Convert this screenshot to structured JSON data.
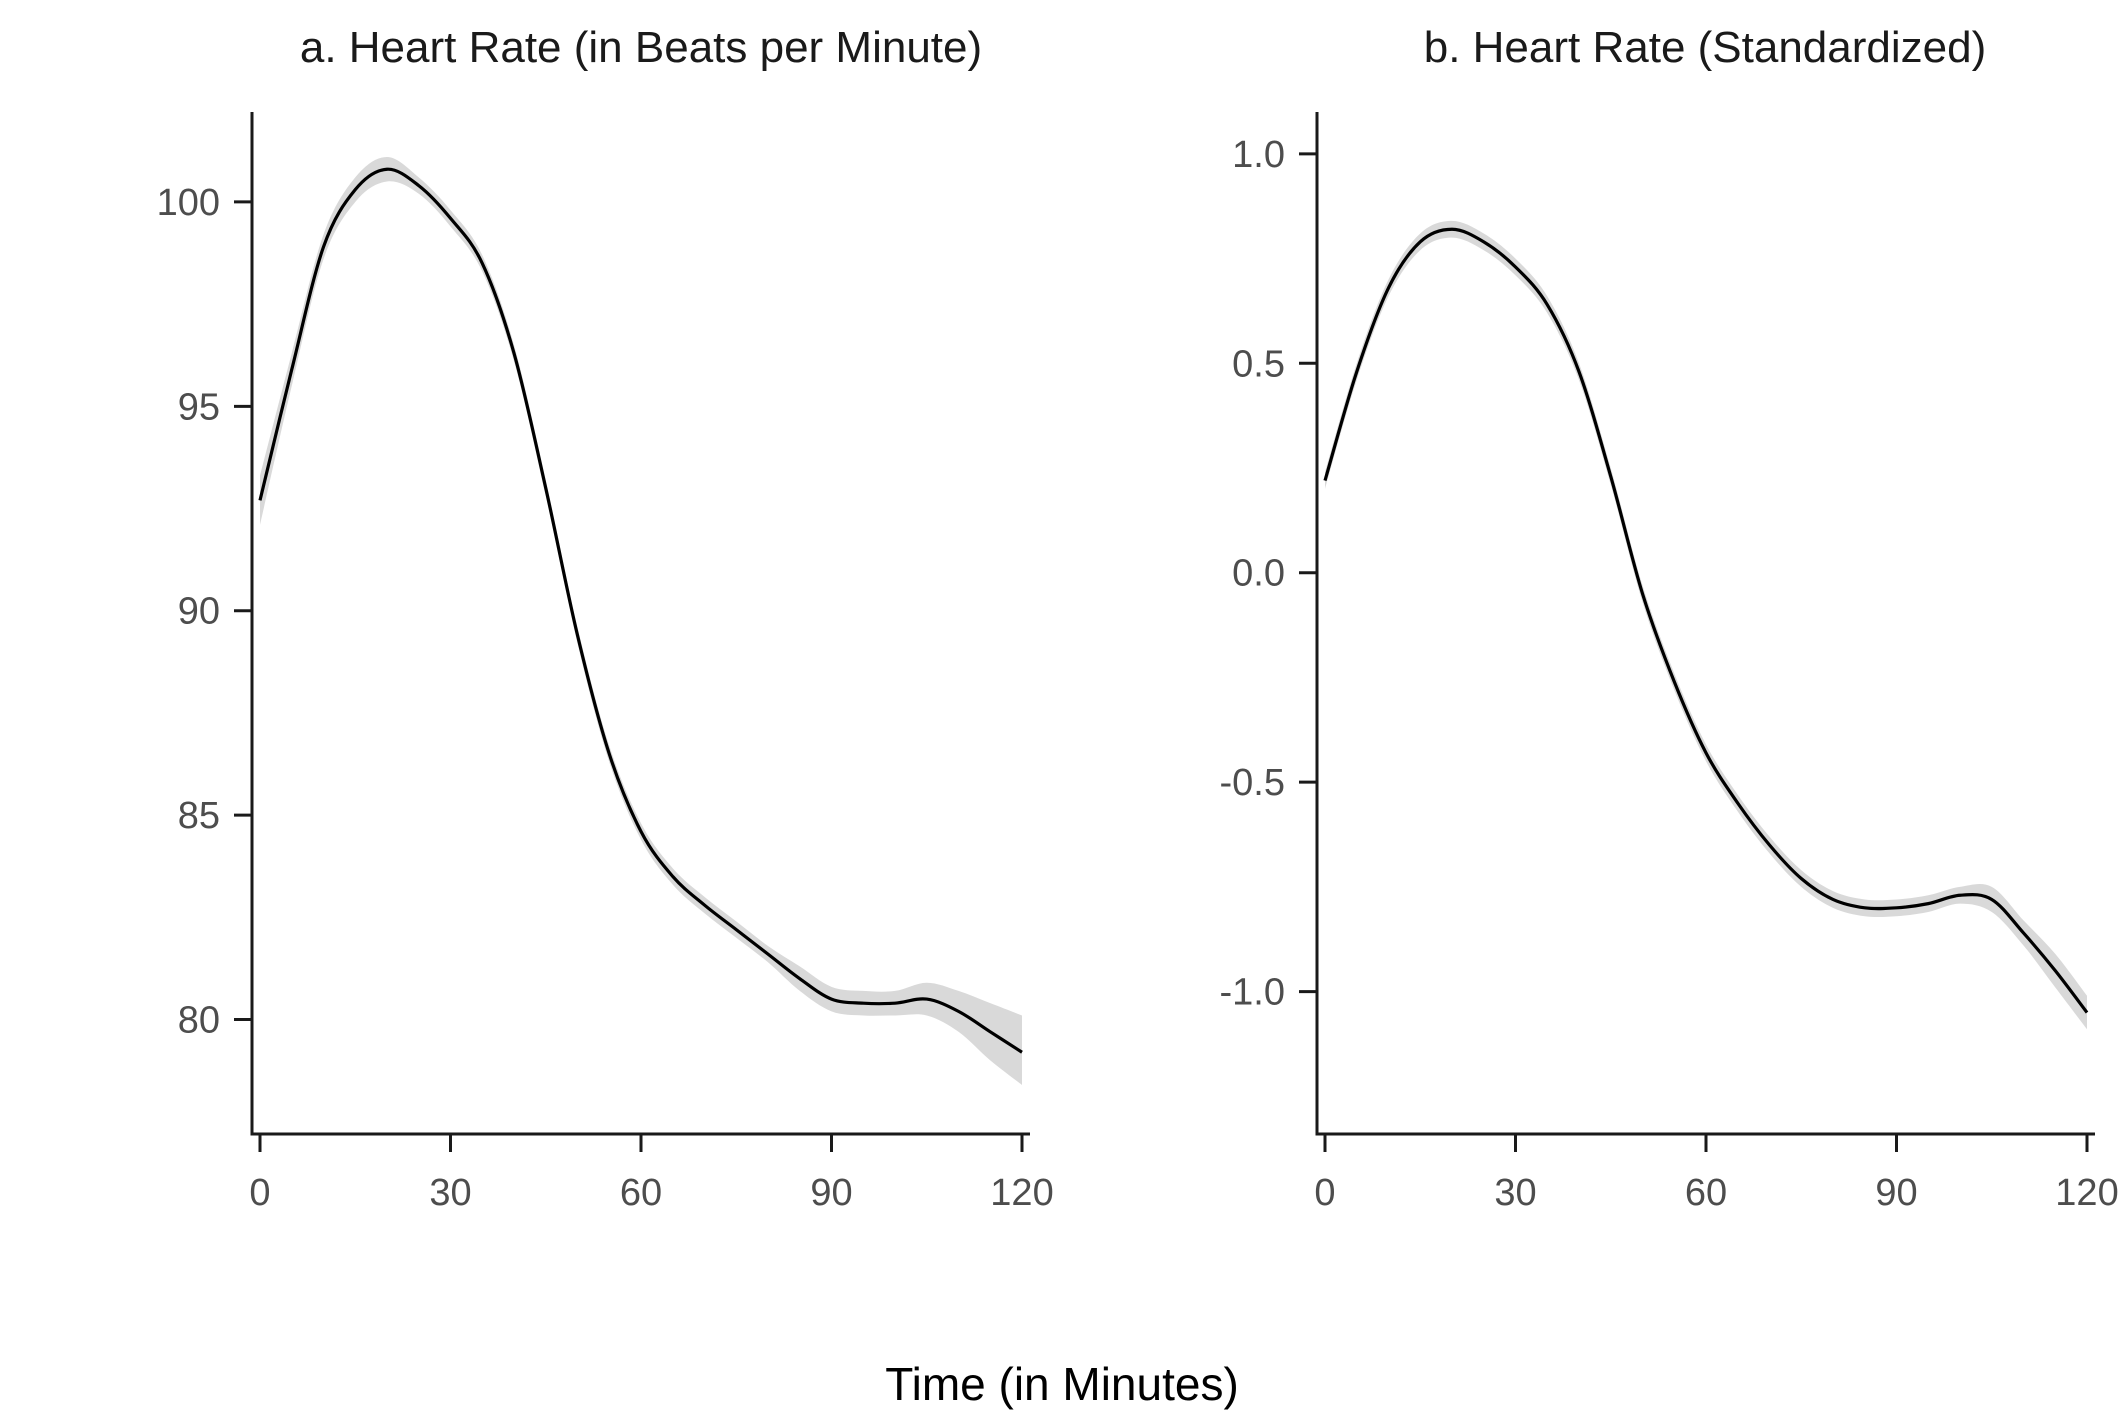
{
  "x_title": "Time (in Minutes)",
  "colors": {
    "line": "#000000",
    "band": "#d9d9d9",
    "axis": "#1a1a1a",
    "tick_text": "#4d4d4d"
  },
  "chart_data": [
    {
      "type": "line",
      "title": "a. Heart Rate (in Beats per Minute)",
      "xlabel": "Time (in Minutes)",
      "ylabel": "",
      "xlim": [
        0,
        120
      ],
      "ylim": [
        77.2,
        102.2
      ],
      "x_ticks": [
        0,
        30,
        60,
        90,
        120
      ],
      "y_ticks": [
        80,
        85,
        90,
        95,
        100
      ],
      "y_tick_labels": [
        "80",
        "85",
        "90",
        "95",
        "100"
      ],
      "grid": false,
      "confidence_band": true,
      "x": [
        0,
        5,
        10,
        15,
        20,
        25,
        30,
        35,
        40,
        45,
        50,
        55,
        60,
        65,
        70,
        75,
        80,
        85,
        90,
        95,
        100,
        105,
        110,
        115,
        120
      ],
      "y": [
        92.7,
        95.9,
        98.9,
        100.3,
        100.8,
        100.4,
        99.6,
        98.5,
        96.3,
        93.0,
        89.4,
        86.5,
        84.6,
        83.5,
        82.8,
        82.2,
        81.6,
        81.0,
        80.5,
        80.4,
        80.4,
        80.5,
        80.2,
        79.7,
        79.2
      ],
      "lower": [
        92.1,
        95.5,
        98.6,
        100.0,
        100.5,
        100.2,
        99.4,
        98.3,
        96.1,
        92.8,
        89.2,
        86.3,
        84.4,
        83.3,
        82.6,
        82.0,
        81.4,
        80.7,
        80.2,
        80.1,
        80.1,
        80.1,
        79.7,
        79.0,
        78.4
      ],
      "upper": [
        93.3,
        96.3,
        99.2,
        100.6,
        101.1,
        100.6,
        99.8,
        98.7,
        96.5,
        93.2,
        89.6,
        86.7,
        84.8,
        83.7,
        83.0,
        82.4,
        81.8,
        81.3,
        80.8,
        80.7,
        80.7,
        80.9,
        80.7,
        80.4,
        80.1
      ]
    },
    {
      "type": "line",
      "title": "b. Heart Rate (Standardized)",
      "xlabel": "Time (in Minutes)",
      "ylabel": "",
      "xlim": [
        0,
        120
      ],
      "ylim": [
        -1.34,
        1.1
      ],
      "x_ticks": [
        0,
        30,
        60,
        90,
        120
      ],
      "y_ticks": [
        -1.0,
        -0.5,
        0.0,
        0.5,
        1.0
      ],
      "y_tick_labels": [
        "-1.0",
        "-0.5",
        "0.0",
        "0.5",
        "1.0"
      ],
      "grid": false,
      "confidence_band": true,
      "x": [
        0,
        5,
        10,
        15,
        20,
        25,
        30,
        35,
        40,
        45,
        50,
        55,
        60,
        65,
        70,
        75,
        80,
        85,
        90,
        95,
        100,
        105,
        110,
        115,
        120
      ],
      "y": [
        0.22,
        0.48,
        0.68,
        0.79,
        0.82,
        0.79,
        0.73,
        0.64,
        0.48,
        0.23,
        -0.05,
        -0.26,
        -0.43,
        -0.55,
        -0.65,
        -0.73,
        -0.78,
        -0.8,
        -0.8,
        -0.79,
        -0.77,
        -0.78,
        -0.86,
        -0.95,
        -1.05
      ],
      "lower": [
        0.2,
        0.46,
        0.66,
        0.77,
        0.8,
        0.77,
        0.71,
        0.62,
        0.46,
        0.21,
        -0.07,
        -0.28,
        -0.45,
        -0.57,
        -0.67,
        -0.75,
        -0.8,
        -0.82,
        -0.82,
        -0.81,
        -0.79,
        -0.81,
        -0.89,
        -0.99,
        -1.09
      ],
      "upper": [
        0.24,
        0.5,
        0.7,
        0.81,
        0.84,
        0.81,
        0.75,
        0.66,
        0.5,
        0.25,
        -0.03,
        -0.24,
        -0.41,
        -0.53,
        -0.63,
        -0.71,
        -0.76,
        -0.78,
        -0.78,
        -0.77,
        -0.75,
        -0.75,
        -0.83,
        -0.91,
        -1.01
      ]
    }
  ]
}
